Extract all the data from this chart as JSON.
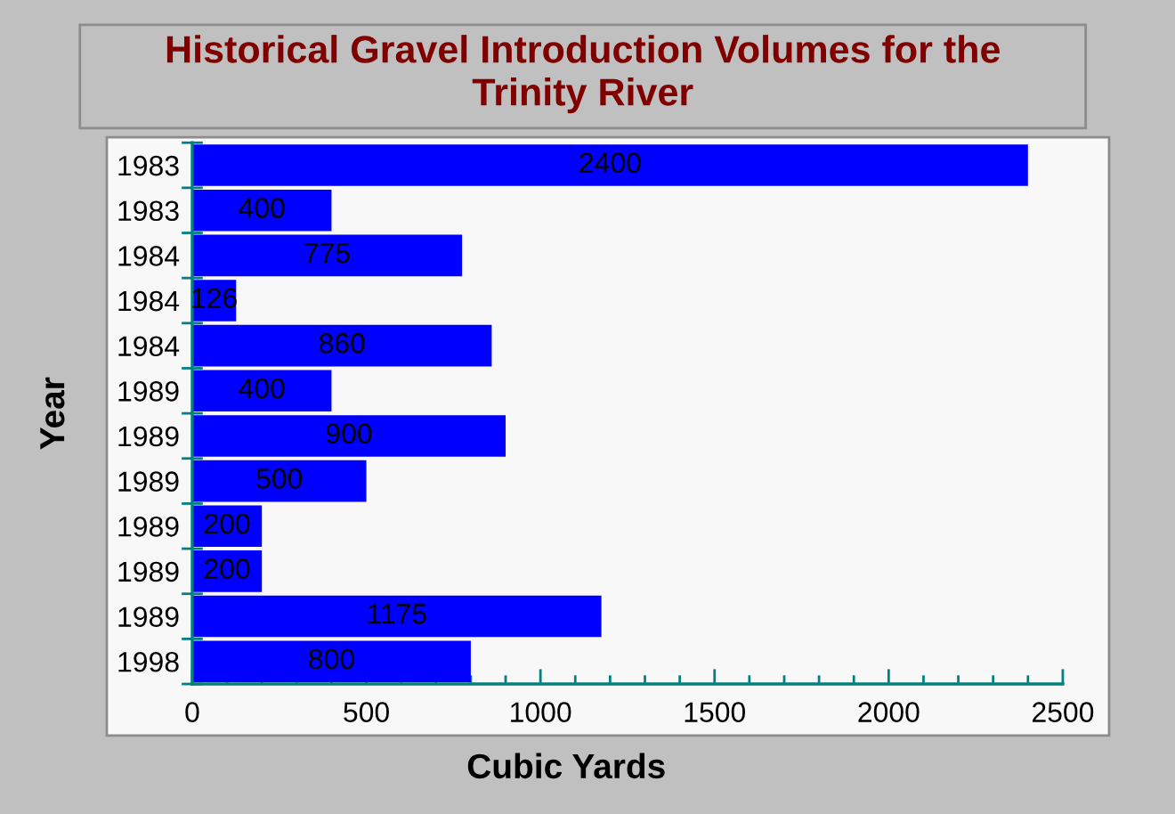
{
  "chart_data": {
    "type": "bar",
    "orientation": "horizontal",
    "title": "Historical Gravel Introduction Volumes for the Trinity River",
    "xlabel": "Cubic Yards",
    "ylabel": "Year",
    "categories": [
      "1983",
      "1983",
      "1984",
      "1984",
      "1984",
      "1989",
      "1989",
      "1989",
      "1989",
      "1989",
      "1989",
      "1998"
    ],
    "values": [
      2400,
      400,
      775,
      126,
      860,
      400,
      900,
      500,
      200,
      200,
      1175,
      800
    ],
    "color": "#0000ff",
    "xlim": [
      0,
      2500
    ],
    "xticks": [
      0,
      500,
      1000,
      1500,
      2000,
      2500
    ],
    "data_labels": true
  }
}
